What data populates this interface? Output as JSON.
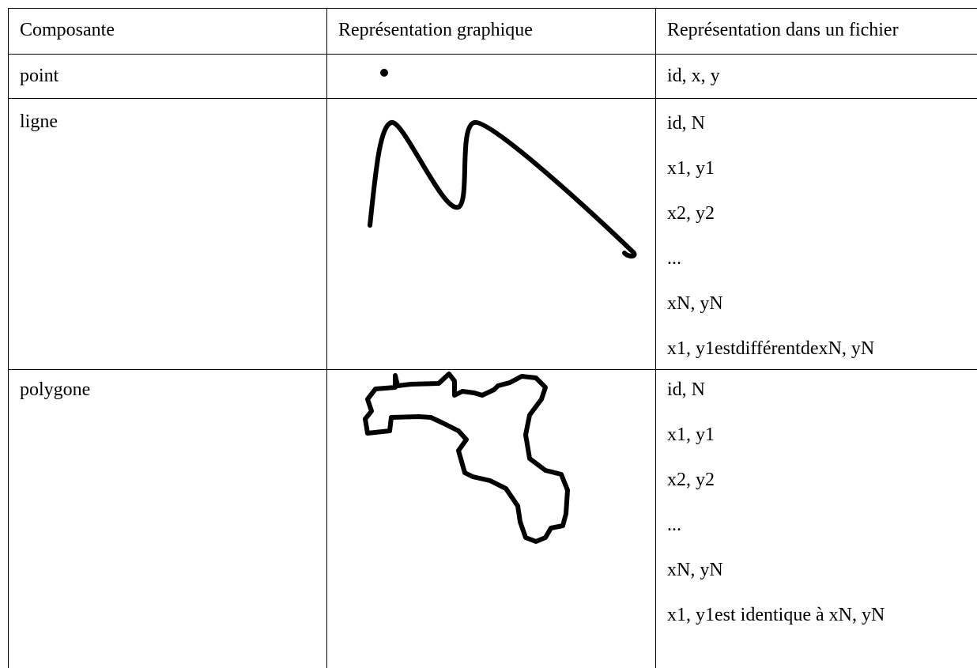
{
  "table": {
    "header": [
      "Composante",
      "Représentation graphique",
      "Représentation dans un fichier"
    ],
    "rows": [
      {
        "label": "point",
        "lines": [
          "id, x, y"
        ]
      },
      {
        "label": "ligne",
        "lines": [
          "id, N",
          "x1, y1",
          "x2, y2",
          "...",
          "xN, yN",
          "x1, y1estdifférentdexN, yN"
        ]
      },
      {
        "label": "polygone",
        "lines": [
          "id, N",
          "x1, y1",
          "x2, y2",
          "...",
          "xN, yN",
          "x1, y1est identique à xN, yN"
        ]
      }
    ]
  }
}
